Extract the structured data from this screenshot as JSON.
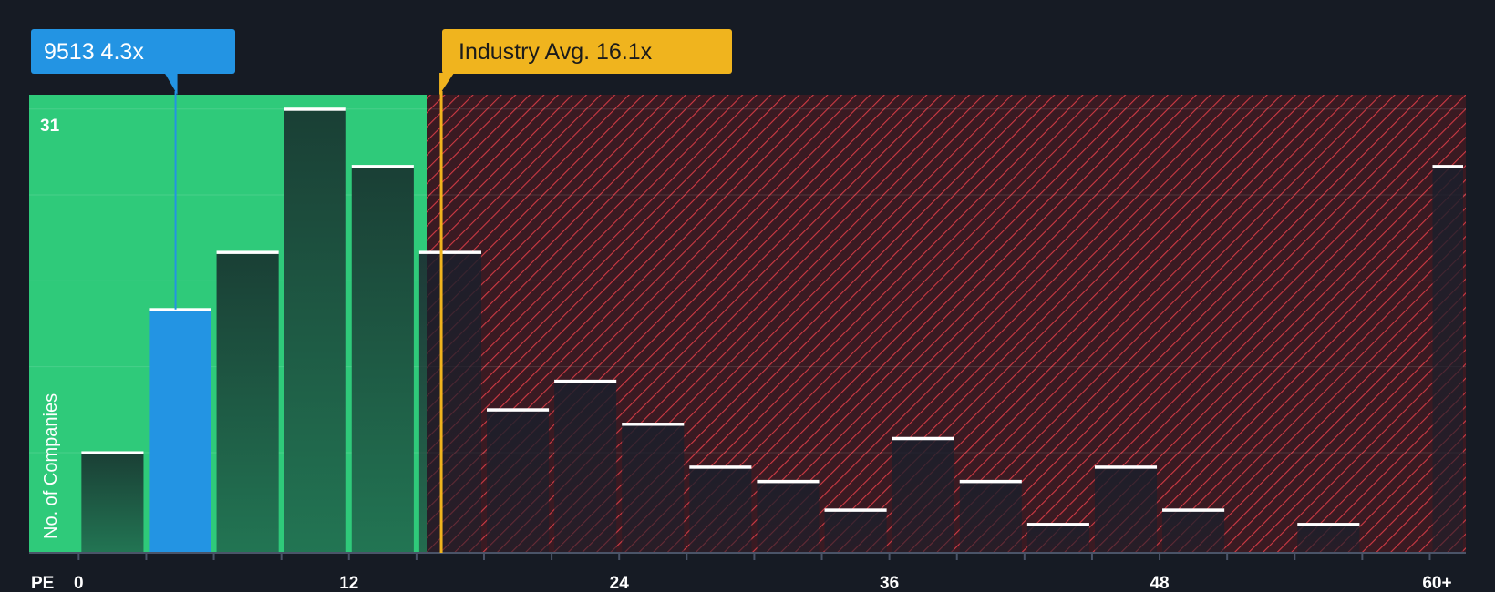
{
  "chart_data": {
    "type": "bar",
    "title": "",
    "xlabel": "PE",
    "ylabel": "No. of Companies",
    "x_ticks": [
      "0",
      "12",
      "24",
      "36",
      "48",
      "60+"
    ],
    "tick_values": [
      0,
      12,
      24,
      36,
      48,
      60
    ],
    "xlim": [
      -2.2,
      61.6
    ],
    "ylim": [
      0,
      32
    ],
    "y_max_label": "31",
    "bins": [
      {
        "start": 0,
        "end": 3,
        "value": 7
      },
      {
        "start": 3,
        "end": 6,
        "value": 17
      },
      {
        "start": 6,
        "end": 9,
        "value": 21
      },
      {
        "start": 9,
        "end": 12,
        "value": 31
      },
      {
        "start": 12,
        "end": 15,
        "value": 27
      },
      {
        "start": 15,
        "end": 18,
        "value": 21
      },
      {
        "start": 18,
        "end": 21,
        "value": 10
      },
      {
        "start": 21,
        "end": 24,
        "value": 12
      },
      {
        "start": 24,
        "end": 27,
        "value": 9
      },
      {
        "start": 27,
        "end": 30,
        "value": 6
      },
      {
        "start": 30,
        "end": 33,
        "value": 5
      },
      {
        "start": 33,
        "end": 36,
        "value": 3
      },
      {
        "start": 36,
        "end": 39,
        "value": 8
      },
      {
        "start": 39,
        "end": 42,
        "value": 5
      },
      {
        "start": 42,
        "end": 45,
        "value": 2
      },
      {
        "start": 45,
        "end": 48,
        "value": 6
      },
      {
        "start": 48,
        "end": 51,
        "value": 3
      },
      {
        "start": 51,
        "end": 54,
        "value": 0
      },
      {
        "start": 54,
        "end": 57,
        "value": 2
      },
      {
        "start": 57,
        "end": 60,
        "value": 0
      },
      {
        "start": 60,
        "end": 61.6,
        "value": 27
      }
    ],
    "company": {
      "label": "9513 4.3x",
      "value": 4.3,
      "bin_index": 1
    },
    "industry_avg": {
      "label": "Industry Avg. 16.1x",
      "value": 16.1
    },
    "fair_zone_end": 15.5
  },
  "colors": {
    "background": "#161b24",
    "fair_zone": "#2fca7a",
    "bar_dark": "#1b4a3c",
    "bar_dark_bottom": "#22704f",
    "company_bar": "#2394e3",
    "hatch_bg": "#3a1a22",
    "hatch_line": "#d03a44",
    "industry_callout": "#f0b41e",
    "bar_cap": "#ffffff"
  }
}
